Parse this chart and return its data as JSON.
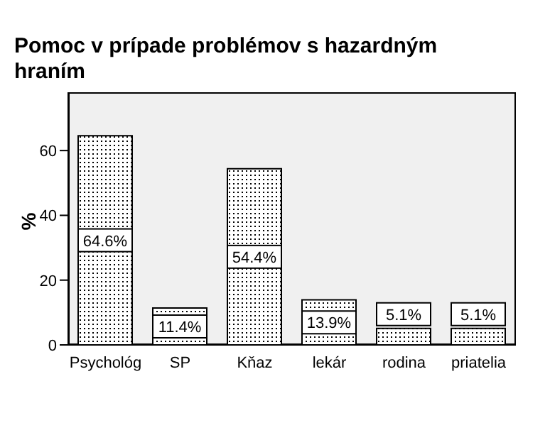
{
  "chart_data": {
    "type": "bar",
    "title": "Pomoc v prípade problémov s hazardným hraním",
    "ylabel": "%",
    "categories": [
      "Psychológ",
      "SP",
      "Kňaz",
      "lekár",
      "rodina",
      "priatelia"
    ],
    "values": [
      64.6,
      11.4,
      54.4,
      13.9,
      5.1,
      5.1
    ],
    "value_labels": [
      "64.6%",
      "11.4%",
      "54.4%",
      "13.9%",
      "5.1%",
      "5.1%"
    ],
    "color": "#000000",
    "ylim": [
      0,
      78
    ],
    "yticks": [
      0,
      20,
      40,
      60
    ],
    "grid": false
  }
}
